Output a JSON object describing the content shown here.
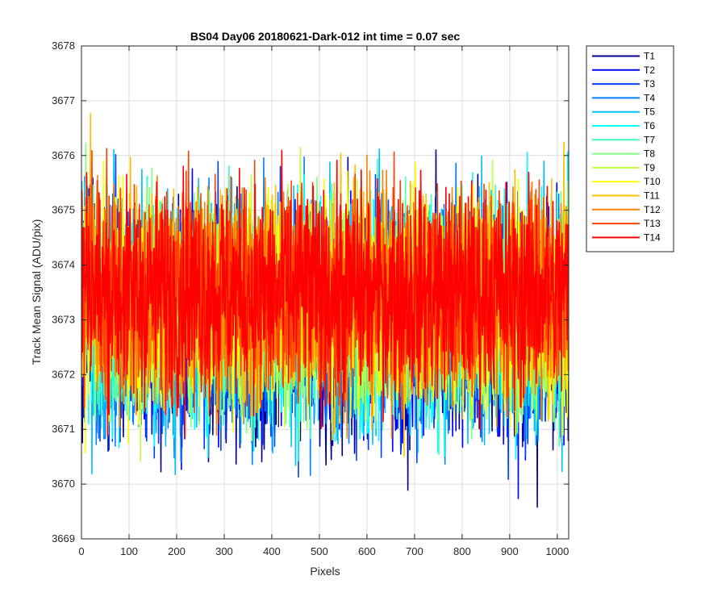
{
  "chart_data": {
    "type": "line",
    "title": "BS04 Day06 20180621-Dark-012 int time = 0.07 sec",
    "xlabel": "Pixels",
    "ylabel": "Track Mean Signal (ADU/pix)",
    "xlim": [
      0,
      1024
    ],
    "ylim": [
      3669,
      3678
    ],
    "xticks": [
      "0",
      "100",
      "200",
      "300",
      "400",
      "500",
      "600",
      "700",
      "800",
      "900",
      "1000"
    ],
    "xtick_values": [
      0,
      100,
      200,
      300,
      400,
      500,
      600,
      700,
      800,
      900,
      1000
    ],
    "yticks": [
      "3669",
      "3670",
      "3671",
      "3672",
      "3673",
      "3674",
      "3675",
      "3676",
      "3677",
      "3678"
    ],
    "ytick_values": [
      3669,
      3670,
      3671,
      3672,
      3673,
      3674,
      3675,
      3676,
      3677,
      3678
    ],
    "grid": true,
    "legend_position": "outside-top-right",
    "series": [
      {
        "name": "T1",
        "color": "#00008f",
        "mean": 3672.9,
        "spread": 1.1
      },
      {
        "name": "T2",
        "color": "#0000ff",
        "mean": 3672.9,
        "spread": 1.1
      },
      {
        "name": "T3",
        "color": "#0040ff",
        "mean": 3673.0,
        "spread": 1.1
      },
      {
        "name": "T4",
        "color": "#0080ff",
        "mean": 3673.0,
        "spread": 1.1
      },
      {
        "name": "T5",
        "color": "#00bfff",
        "mean": 3673.1,
        "spread": 1.1
      },
      {
        "name": "T6",
        "color": "#00ffff",
        "mean": 3673.1,
        "spread": 1.1
      },
      {
        "name": "T7",
        "color": "#40ffbf",
        "mean": 3673.2,
        "spread": 1.0
      },
      {
        "name": "T8",
        "color": "#80ff80",
        "mean": 3673.2,
        "spread": 1.0
      },
      {
        "name": "T9",
        "color": "#bfff40",
        "mean": 3673.3,
        "spread": 1.0
      },
      {
        "name": "T10",
        "color": "#ffff00",
        "mean": 3673.3,
        "spread": 1.0
      },
      {
        "name": "T11",
        "color": "#ffbf00",
        "mean": 3673.4,
        "spread": 1.0
      },
      {
        "name": "T12",
        "color": "#ff8000",
        "mean": 3673.4,
        "spread": 1.0
      },
      {
        "name": "T13",
        "color": "#ff4000",
        "mean": 3673.5,
        "spread": 1.0
      },
      {
        "name": "T14",
        "color": "#ff0000",
        "mean": 3673.5,
        "spread": 1.0
      }
    ]
  }
}
